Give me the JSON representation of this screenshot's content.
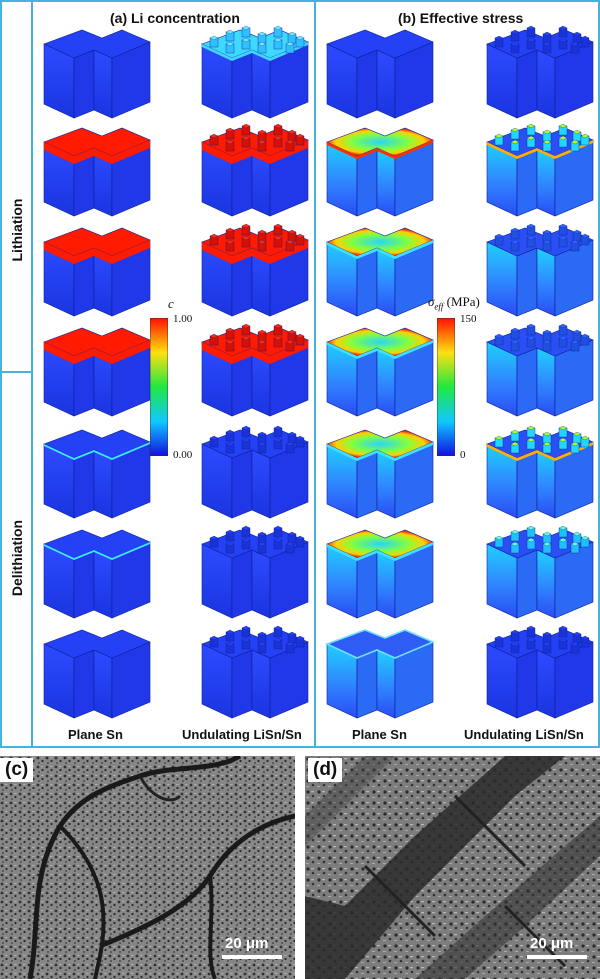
{
  "panel_a_title": "(a) Li concentration",
  "panel_b_title": "(b) Effective stress",
  "side_labels": {
    "top": "Lithiation",
    "bottom": "Delithiation"
  },
  "column_labels": [
    "Plane Sn",
    "Undulating LiSn/Sn",
    "Plane Sn",
    "Undulating LiSn/Sn"
  ],
  "colorbar_c": {
    "label": "c",
    "max": "1.00",
    "min": "0.00"
  },
  "colorbar_stress": {
    "label_main": "σ",
    "label_sub": "eff",
    "label_unit": " (MPa)",
    "max": "150",
    "min": "0"
  },
  "micrograph_c": {
    "tag": "(c)",
    "scale": "20 μm"
  },
  "micrograph_d": {
    "tag": "(d)",
    "scale": "20 μm"
  },
  "colors": {
    "frame": "#45b3e0",
    "base": "#1f3ff0",
    "high": "#ff1500",
    "cyan": "#3fd8ff"
  },
  "rows": [
    {
      "plane_c": "blue",
      "und_c": "cyan",
      "plane_s": "blue",
      "und_s": "blue"
    },
    {
      "plane_c": "red",
      "und_c": "red",
      "plane_s": "stress-hot",
      "und_s": "stress-mix"
    },
    {
      "plane_c": "red",
      "und_c": "red",
      "plane_s": "stress-ring",
      "und_s": "stress-low"
    },
    {
      "plane_c": "red",
      "und_c": "red",
      "plane_s": "stress-ring-soft",
      "und_s": "stress-low"
    },
    {
      "plane_c": "thin",
      "und_c": "blue",
      "plane_s": "stress-ring",
      "und_s": "stress-mix"
    },
    {
      "plane_c": "thin",
      "und_c": "blue",
      "plane_s": "stress-ring",
      "und_s": "stress-cyan"
    },
    {
      "plane_c": "blue",
      "und_c": "blue",
      "plane_s": "stress-faint",
      "und_s": "blue"
    }
  ]
}
